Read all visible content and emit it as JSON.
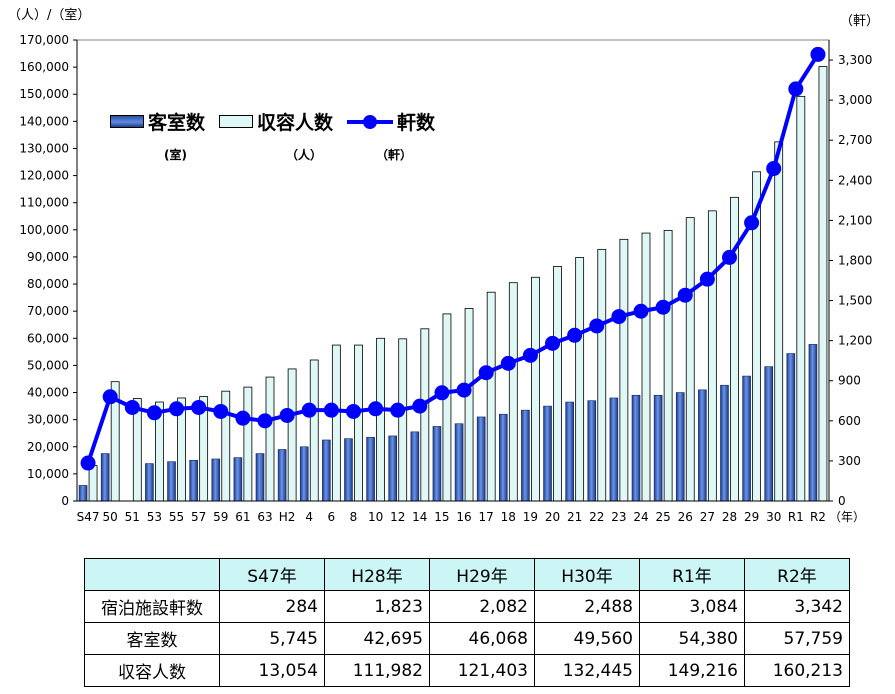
{
  "chart_data": {
    "type": "bar",
    "left_axis_unit": "（人）/（室）",
    "right_axis_unit": "（軒）",
    "x_axis_unit": "（年）",
    "categories": [
      "S47",
      "50",
      "51",
      "53",
      "55",
      "57",
      "59",
      "61",
      "63",
      "H2",
      "4",
      "6",
      "8",
      "10",
      "12",
      "14",
      "15",
      "16",
      "17",
      "18",
      "19",
      "20",
      "21",
      "22",
      "23",
      "24",
      "25",
      "26",
      "27",
      "28",
      "29",
      "30",
      "R1",
      "R2"
    ],
    "series": [
      {
        "name": "客室数",
        "name_unit": "(室)",
        "kind": "bar",
        "axis": "left",
        "color": "#2a4fa0",
        "values": [
          5745,
          17500,
          null,
          13800,
          14500,
          15000,
          15500,
          16000,
          17500,
          19000,
          20000,
          22500,
          23000,
          23500,
          24000,
          25500,
          27500,
          28500,
          31000,
          32000,
          33500,
          35000,
          36500,
          37000,
          38000,
          39000,
          39000,
          40000,
          41000,
          42695,
          46068,
          49560,
          54380,
          57759
        ]
      },
      {
        "name": "収容人数",
        "name_unit": "（人）",
        "kind": "bar",
        "axis": "left",
        "color": "#dff8f6",
        "values": [
          13054,
          44000,
          37800,
          36500,
          38000,
          38500,
          40500,
          42000,
          45700,
          48700,
          52000,
          57500,
          57500,
          60000,
          59800,
          63500,
          69000,
          71000,
          77000,
          80500,
          82500,
          86500,
          89800,
          92800,
          96500,
          98800,
          99800,
          104500,
          107000,
          111982,
          121403,
          132445,
          149216,
          160213
        ]
      },
      {
        "name": "軒数",
        "name_unit": "（軒）",
        "kind": "line",
        "axis": "right",
        "color": "#0000ff",
        "values": [
          284,
          780,
          700,
          660,
          690,
          700,
          670,
          620,
          600,
          640,
          680,
          680,
          670,
          690,
          680,
          710,
          810,
          830,
          960,
          1030,
          1090,
          1180,
          1240,
          1310,
          1380,
          1420,
          1450,
          1540,
          1660,
          1823,
          2082,
          2488,
          3084,
          3342
        ]
      }
    ],
    "left_ticks": [
      "0",
      "10,000",
      "20,000",
      "30,000",
      "40,000",
      "50,000",
      "60,000",
      "70,000",
      "80,000",
      "90,000",
      "100,000",
      "110,000",
      "120,000",
      "130,000",
      "140,000",
      "150,000",
      "160,000",
      "170,000"
    ],
    "right_ticks": [
      "0",
      "300",
      "600",
      "900",
      "1,200",
      "1,500",
      "1,800",
      "2,100",
      "2,400",
      "2,700",
      "3,000",
      "3,300"
    ],
    "ylim_left": [
      0,
      170000
    ],
    "ylim_right": [
      0,
      3450
    ],
    "legend_position": "top-left"
  },
  "table": {
    "headers": [
      "",
      "S47年",
      "H28年",
      "H29年",
      "H30年",
      "R1年",
      "R2年"
    ],
    "rows": [
      {
        "label": "宿泊施設軒数",
        "values": [
          "284",
          "1,823",
          "2,082",
          "2,488",
          "3,084",
          "3,342"
        ]
      },
      {
        "label": "客室数",
        "values": [
          "5,745",
          "42,695",
          "46,068",
          "49,560",
          "54,380",
          "57,759"
        ]
      },
      {
        "label": "収容人数",
        "values": [
          "13,054",
          "111,982",
          "121,403",
          "132,445",
          "149,216",
          "160,213"
        ]
      }
    ]
  }
}
